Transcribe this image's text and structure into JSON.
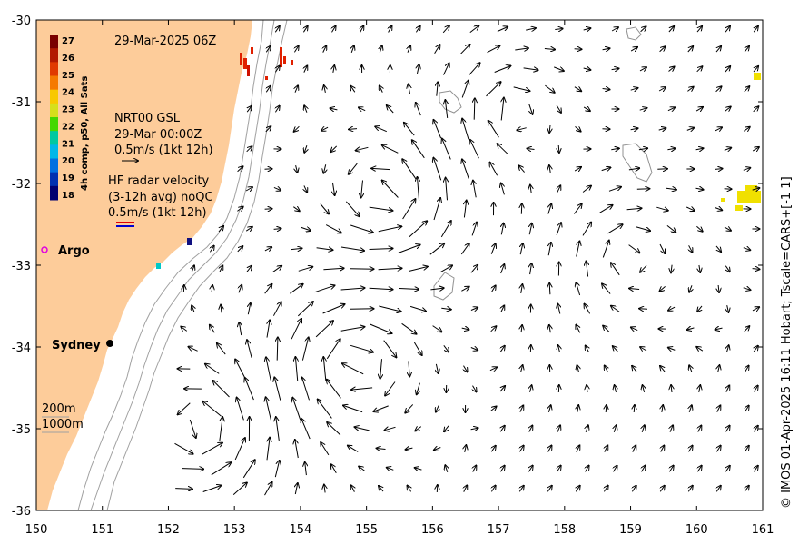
{
  "map": {
    "timestamp": "29-Mar-2025 06Z",
    "lon_ticks": [
      "150",
      "151",
      "152",
      "153",
      "154",
      "155",
      "156",
      "157",
      "158",
      "159",
      "160",
      "161"
    ],
    "lat_ticks": [
      "-30",
      "-31",
      "-32",
      "-33",
      "-34",
      "-35",
      "-36"
    ],
    "lon_range": [
      150,
      161
    ],
    "lat_range": [
      -36,
      -30
    ],
    "land_color": "#fdcc9a",
    "colorbar": {
      "title": "4h comp, p50, All Sats",
      "labels": [
        "27",
        "26",
        "25",
        "24",
        "23",
        "22",
        "21",
        "20",
        "19",
        "18"
      ],
      "colors": [
        "#7a0000",
        "#b21a00",
        "#e03a00",
        "#f57a00",
        "#f8c800",
        "#d6df1c",
        "#44d800",
        "#00c8a0",
        "#00b7e8",
        "#0070e0",
        "#0030b0",
        "#000070"
      ]
    },
    "nrt": {
      "line1": "NRT00 GSL",
      "line2": "29-Mar 00:00Z",
      "line3": "0.5m/s (1kt 12h)"
    },
    "hf": {
      "line1": "HF radar velocity",
      "line2": "(3-12h avg) noQC",
      "line3": "0.5m/s (1kt 12h)"
    },
    "argo_label": "Argo",
    "sydney_label": "Sydney",
    "depth_200": "200m",
    "depth_1000": "1000m",
    "credit": "© IMOS 01-Apr-2025 16:11 Hobart; Tscale=CARS+[-1 1]"
  }
}
